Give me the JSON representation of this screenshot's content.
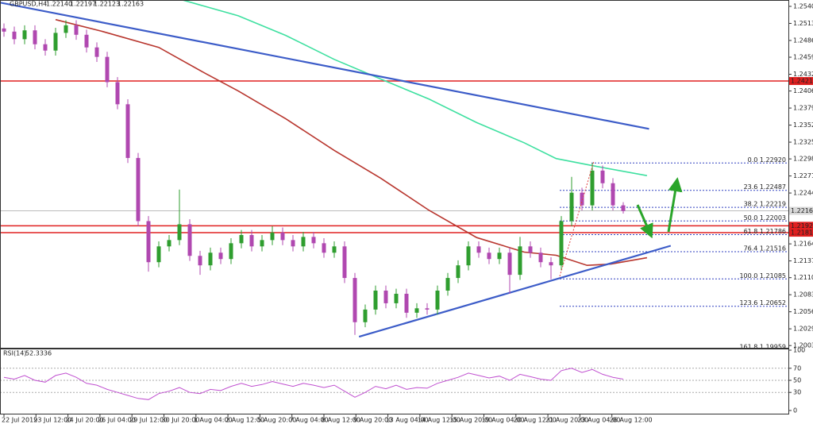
{
  "chart_data": [
    {
      "type": "candlestick",
      "title": "GBPUSD,H4",
      "quote": [
        {
          "value": 1.2214,
          "label": "1.22140"
        },
        1.22197,
        1.22123,
        1.22163
      ],
      "open": [
        1.2505,
        1.25,
        1.2488,
        1.2502,
        1.248,
        1.247,
        1.2498,
        1.251,
        1.2495,
        1.2475,
        1.246,
        1.242,
        1.2385,
        1.23,
        1.22,
        1.2135,
        1.216,
        1.217,
        1.2195,
        1.2145,
        1.213,
        1.215,
        1.214,
        1.2165,
        1.2178,
        1.216,
        1.217,
        1.2182,
        1.217,
        1.216,
        1.2175,
        1.2165,
        1.215,
        1.216,
        1.211,
        1.204,
        1.206,
        1.209,
        1.207,
        1.2085,
        1.2055,
        1.2062,
        1.206,
        1.209,
        1.211,
        1.213,
        1.216,
        1.215,
        1.214,
        1.215,
        1.2115,
        1.216,
        1.215,
        1.2135,
        1.213,
        1.22,
        1.2245,
        1.2225,
        1.228,
        1.226,
        1.2225
      ],
      "high": [
        1.2513,
        1.2508,
        1.251,
        1.251,
        1.2488,
        1.2506,
        1.2518,
        1.2518,
        1.2503,
        1.2483,
        1.2468,
        1.2428,
        1.2393,
        1.2308,
        1.2208,
        1.2168,
        1.2178,
        1.225,
        1.2203,
        1.2153,
        1.2158,
        1.2158,
        1.2173,
        1.2186,
        1.2186,
        1.2178,
        1.2192,
        1.219,
        1.2178,
        1.2183,
        1.2183,
        1.2173,
        1.2168,
        1.2168,
        1.2118,
        1.2068,
        1.2098,
        1.2098,
        1.2093,
        1.2093,
        1.207,
        1.207,
        1.2098,
        1.2118,
        1.2138,
        1.2168,
        1.2168,
        1.2158,
        1.2158,
        1.2158,
        1.2175,
        1.2168,
        1.2158,
        1.2143,
        1.2208,
        1.227,
        1.2253,
        1.2292,
        1.2288,
        1.2268,
        1.223
      ],
      "low": [
        1.2492,
        1.248,
        1.248,
        1.2472,
        1.2462,
        1.2462,
        1.249,
        1.2487,
        1.2467,
        1.2452,
        1.2412,
        1.2377,
        1.2292,
        1.2192,
        1.212,
        1.2127,
        1.2152,
        1.2162,
        1.2137,
        1.2115,
        1.2122,
        1.2132,
        1.2132,
        1.2157,
        1.2152,
        1.2152,
        1.2162,
        1.2162,
        1.2152,
        1.2152,
        1.2157,
        1.2142,
        1.2142,
        1.2102,
        1.202,
        1.2032,
        1.2052,
        1.2062,
        1.2062,
        1.2047,
        1.2047,
        1.2052,
        1.2052,
        1.2082,
        1.2102,
        1.2122,
        1.2142,
        1.2132,
        1.2132,
        1.2085,
        1.2107,
        1.2142,
        1.2127,
        1.2108,
        1.2122,
        1.2192,
        1.2217,
        1.2217,
        1.2252,
        1.2217,
        1.2212
      ],
      "close": [
        1.25,
        1.2488,
        1.2502,
        1.248,
        1.247,
        1.2498,
        1.251,
        1.2495,
        1.2475,
        1.246,
        1.242,
        1.2385,
        1.23,
        1.22,
        1.2135,
        1.216,
        1.217,
        1.2195,
        1.2145,
        1.213,
        1.215,
        1.214,
        1.2165,
        1.2178,
        1.216,
        1.217,
        1.2182,
        1.217,
        1.216,
        1.2175,
        1.2165,
        1.215,
        1.216,
        1.211,
        1.204,
        1.206,
        1.209,
        1.207,
        1.2085,
        1.2055,
        1.2062,
        1.206,
        1.209,
        1.211,
        1.213,
        1.216,
        1.215,
        1.214,
        1.215,
        1.2115,
        1.216,
        1.215,
        1.2135,
        1.213,
        1.22,
        1.2245,
        1.2225,
        1.228,
        1.226,
        1.2225,
        1.2216
      ],
      "up_color": "#2f9e2f",
      "down_color": "#b048b0",
      "moving_averages": [
        {
          "color": "#b8362e",
          "x": [
            5,
            9.6,
            15,
            19.6,
            22.7,
            27.3,
            32,
            36.5,
            41.2,
            45.8,
            50.4,
            53.5,
            56.5,
            58.8,
            62.3
          ],
          "values": [
            1.2519,
            1.25,
            1.2475,
            1.2433,
            1.2406,
            1.2362,
            1.2312,
            1.2268,
            1.2217,
            1.2174,
            1.2151,
            1.2146,
            1.213,
            1.2132,
            1.2142
          ]
        },
        {
          "color": "#3ee0a0",
          "x": [
            17.3,
            22.7,
            27.3,
            32,
            36.5,
            41.2,
            45.8,
            50.4,
            53.5,
            57.3,
            62.3
          ],
          "values": [
            1.255,
            1.2525,
            1.2494,
            1.2456,
            1.2425,
            1.2393,
            1.2356,
            1.2324,
            1.2299,
            1.2287,
            1.2272
          ]
        }
      ],
      "trendlines": [
        {
          "color": "#3c5cc8",
          "x": [
            -0.4,
            62.5
          ],
          "values": [
            1.2546,
            1.2346
          ]
        },
        {
          "color": "#3c5cc8",
          "x": [
            34.4,
            64.6
          ],
          "values": [
            1.2017,
            1.2161
          ]
        }
      ],
      "levels": [
        {
          "value": 1.24218,
          "label": "1.24218"
        },
        {
          "value": 1.21926,
          "label": "1.21926"
        },
        {
          "value": 1.21817,
          "label": "1.21817"
        }
      ],
      "level_color": "#e02020",
      "current": 1.22163,
      "fib_levels": [
        {
          "value": 1.2292,
          "label": "0.0 1.22920"
        },
        {
          "value": 1.22487,
          "label": "23.6 1.22487"
        },
        {
          "value": 1.22219,
          "label": "38.2 1.22219"
        },
        {
          "value": 1.22003,
          "label": "50.0 1.22003"
        },
        {
          "value": 1.21786,
          "label": "61.8 1.21786"
        },
        {
          "value": 1.21516,
          "label": "76.4 1.21516"
        },
        {
          "value": 1.21085,
          "label": "100.0 1.21085"
        },
        {
          "value": 1.20652,
          "label": "123.6 1.20652"
        },
        {
          "value": 1.19959,
          "label": "161.8 1.19959"
        }
      ],
      "ylim": [
        1.19995,
        1.25488
      ],
      "yticks": [
        {
          "value": 1.254,
          "label": "1.25400"
        },
        {
          "value": 1.2513,
          "label": "1.25130"
        },
        {
          "value": 1.2486,
          "label": "1.24860"
        },
        1.24595,
        1.24325,
        {
          "value": 1.2406,
          "label": "1.24060"
        },
        {
          "value": 1.2379,
          "label": "1.23790"
        },
        {
          "value": 1.2352,
          "label": "1.23520"
        },
        {
          "value": 1.2325,
          "label": "1.23250"
        },
        1.22985,
        1.22715,
        1.22445,
        {
          "value": 1.2164,
          "label": "1.21640"
        },
        {
          "value": 1.2137,
          "label": "1.21370"
        },
        1.21105,
        1.20835,
        1.20565,
        1.20295,
        {
          "value": 1.2003,
          "label": "1.20030"
        }
      ],
      "xticks": [
        {
          "value": 0,
          "label": "22 Jul 2019"
        },
        {
          "value": 3.1,
          "label": "23 Jul 12:00"
        },
        {
          "value": 6.2,
          "label": "24 Jul 20:00"
        },
        {
          "value": 9.3,
          "label": "26 Jul 04:00"
        },
        {
          "value": 12.4,
          "label": "29 Jul 12:00"
        },
        {
          "value": 15.5,
          "label": "30 Jul 20:00"
        },
        {
          "value": 18.6,
          "label": "1 Aug 04:00"
        },
        {
          "value": 21.7,
          "label": "2 Aug 12:00"
        },
        {
          "value": 24.8,
          "label": "5 Aug 20:00"
        },
        {
          "value": 27.9,
          "label": "7 Aug 04:00"
        },
        {
          "value": 31,
          "label": "8 Aug 12:00"
        },
        {
          "value": 34.1,
          "label": "9 Aug 20:00"
        },
        {
          "value": 37.2,
          "label": "13 Aug 04:00"
        },
        {
          "value": 40.3,
          "label": "14 Aug 12:00"
        },
        {
          "value": 43.4,
          "label": "15 Aug 20:00"
        },
        {
          "value": 46.5,
          "label": "19 Aug 04:00"
        },
        {
          "value": 49.6,
          "label": "20 Aug 12:00"
        },
        {
          "value": 52.7,
          "label": "21 Aug 20:00"
        },
        {
          "value": 55.8,
          "label": "23 Aug 04:00"
        },
        {
          "value": 58.9,
          "label": "26 Aug 12:00"
        }
      ]
    },
    {
      "type": "line",
      "title": "RSI(14)",
      "last": 52.3336,
      "color": "#c050d0",
      "values": [
        55,
        52,
        58,
        50,
        47,
        58,
        62,
        55,
        45,
        42,
        35,
        30,
        25,
        20,
        18,
        28,
        32,
        38,
        30,
        28,
        35,
        33,
        40,
        45,
        40,
        43,
        48,
        44,
        40,
        45,
        42,
        38,
        42,
        32,
        22,
        30,
        40,
        36,
        42,
        35,
        38,
        37,
        45,
        50,
        55,
        62,
        58,
        54,
        57,
        50,
        60,
        56,
        52,
        50,
        66,
        70,
        63,
        68,
        60,
        55,
        52
      ],
      "ylim": [
        0,
        100
      ],
      "yticks": [
        100,
        70,
        50,
        30,
        0
      ]
    }
  ]
}
